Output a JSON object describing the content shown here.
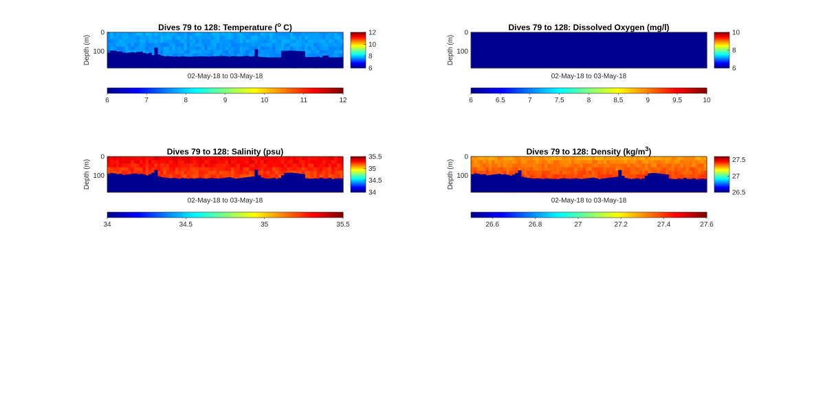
{
  "colormap": [
    "#00008f",
    "#0000ff",
    "#0080ff",
    "#00ffff",
    "#80ff80",
    "#ffff00",
    "#ff8000",
    "#ff0000",
    "#800000"
  ],
  "mask_color": "#00008f",
  "chart_data": [
    {
      "id": "temperature",
      "type": "heatmap",
      "title": "Dives 79 to 128: Temperature (",
      "title_sup": "o",
      "title_suffix": " C)",
      "ylabel": "Depth (m)",
      "xlabel": "02-May-18 to 03-May-18",
      "ylim": [
        0,
        190
      ],
      "yticks": [
        "0",
        "100"
      ],
      "clim": [
        6,
        12
      ],
      "side_colorbar_ticks": [
        "12",
        "10",
        "8",
        "6"
      ],
      "bottom_colorbar_ticks": [
        "6",
        "7",
        "8",
        "9",
        "10",
        "11",
        "12"
      ],
      "field_values": {
        "surface": 7.7,
        "mid": 7.6,
        "deep": 7.5,
        "variation": 0.15
      },
      "max_depth_m": [
        108,
        98,
        98,
        102,
        102,
        108,
        110,
        108,
        106,
        108,
        104,
        104,
        110,
        114,
        110,
        122,
        82,
        118,
        124,
        128,
        127,
        128,
        130,
        129,
        130,
        128,
        129,
        130,
        130,
        129,
        129,
        128,
        128,
        129,
        130,
        128,
        128,
        127,
        127,
        126,
        128,
        130,
        127,
        128,
        129,
        128,
        127,
        126,
        129,
        128,
        90,
        130,
        132,
        133,
        134,
        134,
        134,
        134,
        134,
        100,
        100,
        98,
        98,
        99,
        100,
        100,
        101,
        132,
        132,
        132,
        132,
        130,
        134,
        124,
        124,
        134,
        134,
        134,
        134,
        132
      ]
    },
    {
      "id": "oxygen",
      "type": "heatmap",
      "title": "Dives 79 to 128: Dissolved Oxygen (mg/l)",
      "title_sup": "",
      "title_suffix": "",
      "ylabel": "Depth (m)",
      "xlabel": "02-May-18 to 03-May-18",
      "ylim": [
        0,
        190
      ],
      "yticks": [
        "0",
        "100"
      ],
      "clim": [
        6,
        10
      ],
      "side_colorbar_ticks": [
        "10",
        "8",
        "6"
      ],
      "bottom_colorbar_ticks": [
        "6",
        "6.5",
        "7",
        "7.5",
        "8",
        "8.5",
        "9",
        "9.5",
        "10"
      ],
      "field_values": {
        "surface": 6,
        "mid": 6,
        "deep": 6,
        "variation": 0
      },
      "max_depth_m": [
        0
      ]
    },
    {
      "id": "salinity",
      "type": "heatmap",
      "title": "Dives 79 to 128: Salinity (psu)",
      "title_sup": "",
      "title_suffix": "",
      "ylabel": "Depth (m)",
      "xlabel": "02-May-18 to 03-May-18",
      "ylim": [
        0,
        190
      ],
      "yticks": [
        "0",
        "100"
      ],
      "clim": [
        34,
        35.5
      ],
      "side_colorbar_ticks": [
        "35.5",
        "35",
        "34.5",
        "34"
      ],
      "bottom_colorbar_ticks": [
        "34",
        "34.5",
        "35",
        "35.5"
      ],
      "field_values": {
        "surface": 35.33,
        "mid": 35.22,
        "deep": 35.26,
        "variation": 0.05
      },
      "max_depth_m": [
        92,
        88,
        90,
        94,
        92,
        98,
        96,
        94,
        92,
        90,
        94,
        92,
        96,
        100,
        94,
        86,
        72,
        106,
        110,
        112,
        114,
        116,
        114,
        116,
        118,
        114,
        116,
        118,
        116,
        118,
        116,
        114,
        116,
        118,
        116,
        114,
        116,
        118,
        116,
        114,
        112,
        110,
        114,
        118,
        116,
        114,
        112,
        110,
        108,
        106,
        70,
        100,
        112,
        116,
        118,
        116,
        114,
        118,
        114,
        100,
        88,
        86,
        86,
        88,
        90,
        92,
        94,
        116,
        118,
        118,
        116,
        118,
        112,
        118,
        118,
        114,
        120,
        118,
        116,
        118
      ]
    },
    {
      "id": "density",
      "type": "heatmap",
      "title": "Dives 79 to 128: Density (kg/m",
      "title_sup": "3",
      "title_suffix": ")",
      "ylabel": "Depth (m)",
      "xlabel": "02-May-18 to 03-May-18",
      "ylim": [
        0,
        190
      ],
      "yticks": [
        "0",
        "100"
      ],
      "clim": [
        26.5,
        27.6
      ],
      "side_colorbar_ticks": [
        "27.5",
        "27",
        "26.5"
      ],
      "bottom_colorbar_ticks": [
        "26.6",
        "26.8",
        "27",
        "27.2",
        "27.4",
        "27.6"
      ],
      "bottom_colorbar_range": [
        26.5,
        27.6
      ],
      "field_values": {
        "surface": 27.3,
        "mid": 27.38,
        "deep": 27.44,
        "variation": 0.03
      },
      "max_depth_m": [
        94,
        90,
        92,
        96,
        94,
        100,
        98,
        96,
        94,
        92,
        96,
        94,
        98,
        102,
        96,
        88,
        74,
        108,
        112,
        114,
        116,
        118,
        116,
        118,
        120,
        116,
        118,
        120,
        118,
        120,
        118,
        116,
        118,
        120,
        118,
        116,
        118,
        120,
        118,
        116,
        114,
        112,
        116,
        120,
        118,
        116,
        114,
        112,
        110,
        108,
        72,
        102,
        114,
        118,
        120,
        118,
        116,
        120,
        116,
        102,
        90,
        88,
        88,
        90,
        92,
        94,
        96,
        118,
        120,
        120,
        118,
        120,
        114,
        120,
        120,
        116,
        122,
        120,
        118,
        120
      ]
    }
  ]
}
